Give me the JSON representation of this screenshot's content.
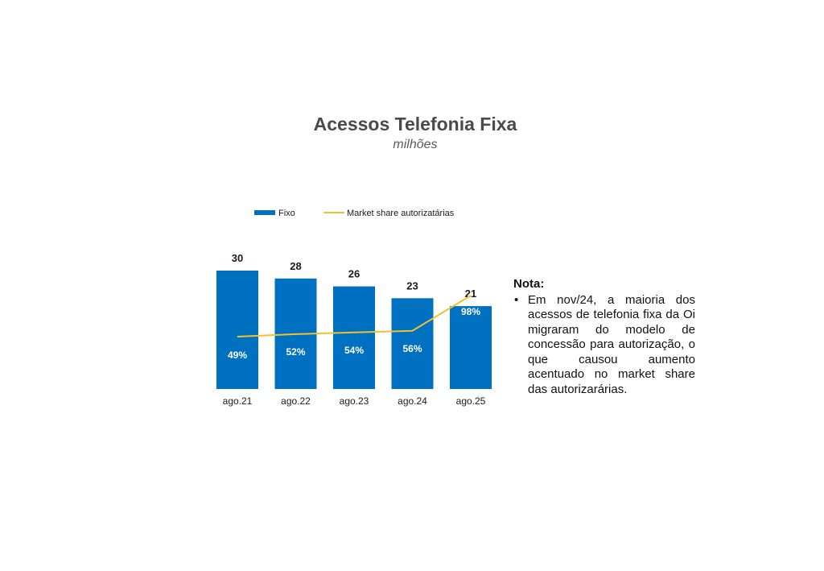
{
  "page": {
    "title": "Acessos Telefonia Fixa",
    "subtitle": "milhões"
  },
  "chart_data": {
    "type": "bar",
    "title": "Acessos Telefonia Fixa",
    "subtitle": "milhões",
    "categories": [
      "ago.21",
      "ago.22",
      "ago.23",
      "ago.24",
      "ago.25"
    ],
    "series": [
      {
        "name": "Fixo",
        "type": "bar",
        "values": [
          30,
          28,
          26,
          23,
          21
        ],
        "labels": [
          "30",
          "28",
          "26",
          "23",
          "21"
        ],
        "color": "#0070c0"
      },
      {
        "name": "Market share autorizatárias",
        "type": "line",
        "values": [
          49,
          52,
          54,
          56,
          98
        ],
        "labels": [
          "49%",
          "52%",
          "54%",
          "56%",
          "98%"
        ],
        "color": "#f2c12e"
      }
    ],
    "legend_position": "top-left",
    "grid": false,
    "xlabel": "",
    "ylabel": ""
  },
  "note": {
    "heading": "Nota:",
    "bullet": "•",
    "text": "Em nov/24, a maioria dos acessos de telefonia fixa da Oi migraram do modelo de concessão para autorização, o que causou aumento acentuado no market share das autorizarárias."
  }
}
